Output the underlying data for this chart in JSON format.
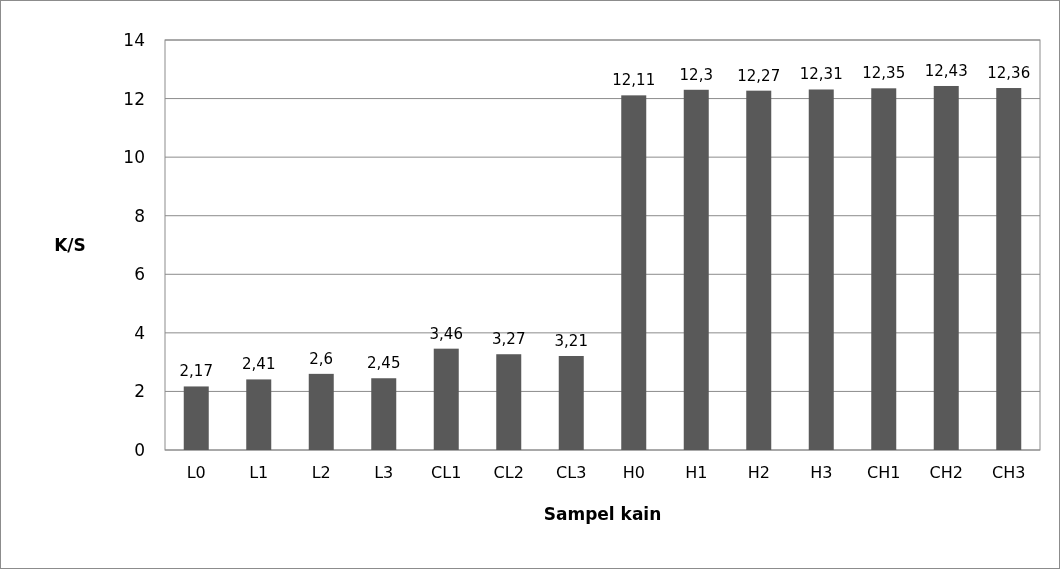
{
  "chart_data": {
    "type": "bar",
    "xlabel": "Sampel kain",
    "ylabel": "K/S",
    "categories": [
      "L0",
      "L1",
      "L2",
      "L3",
      "CL1",
      "CL2",
      "CL3",
      "H0",
      "H1",
      "H2",
      "H3",
      "CH1",
      "CH2",
      "CH3"
    ],
    "values": [
      2.17,
      2.41,
      2.6,
      2.45,
      3.46,
      3.27,
      3.21,
      12.11,
      12.3,
      12.27,
      12.31,
      12.35,
      12.43,
      12.36
    ],
    "value_labels": [
      "2,17",
      "2,41",
      "2,6",
      "2,45",
      "3,46",
      "3,27",
      "3,21",
      "12,11",
      "12,3",
      "12,27",
      "12,31",
      "12,35",
      "12,43",
      "12,36"
    ],
    "color": "#595959",
    "ylim": [
      0,
      14
    ],
    "yticks": [
      0,
      2,
      4,
      6,
      8,
      10,
      12,
      14
    ],
    "grid": "y"
  }
}
